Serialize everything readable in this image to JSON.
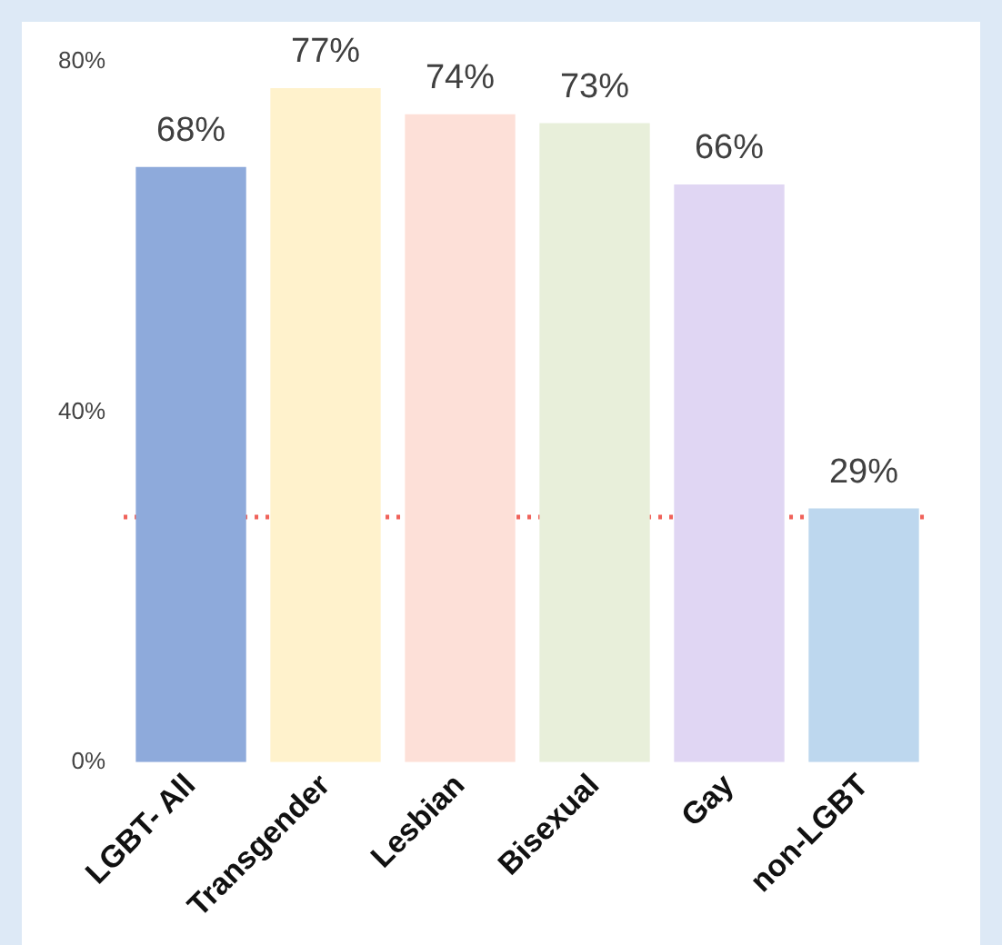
{
  "chart_data": {
    "type": "bar",
    "categories": [
      "LGBT- All",
      "Transgender",
      "Lesbian",
      "Bisexual",
      "Gay",
      "non-LGBT"
    ],
    "values": [
      68,
      77,
      74,
      73,
      66,
      29
    ],
    "colors": [
      "#8eaadb",
      "#fff2cc",
      "#fde0d8",
      "#e8efda",
      "#e0d6f3",
      "#bdd7ee"
    ],
    "value_labels": [
      "68%",
      "77%",
      "74%",
      "73%",
      "66%",
      "29%"
    ],
    "ylim": [
      0,
      80
    ],
    "yticks": [
      {
        "value": 0,
        "label": "0%"
      },
      {
        "value": 40,
        "label": "40%"
      },
      {
        "value": 80,
        "label": "80%"
      }
    ],
    "ref_lines": [
      {
        "axis": "y",
        "value": 28,
        "color": "#f0625a",
        "line_style": "dotted"
      }
    ],
    "grid": false,
    "legend": false
  }
}
